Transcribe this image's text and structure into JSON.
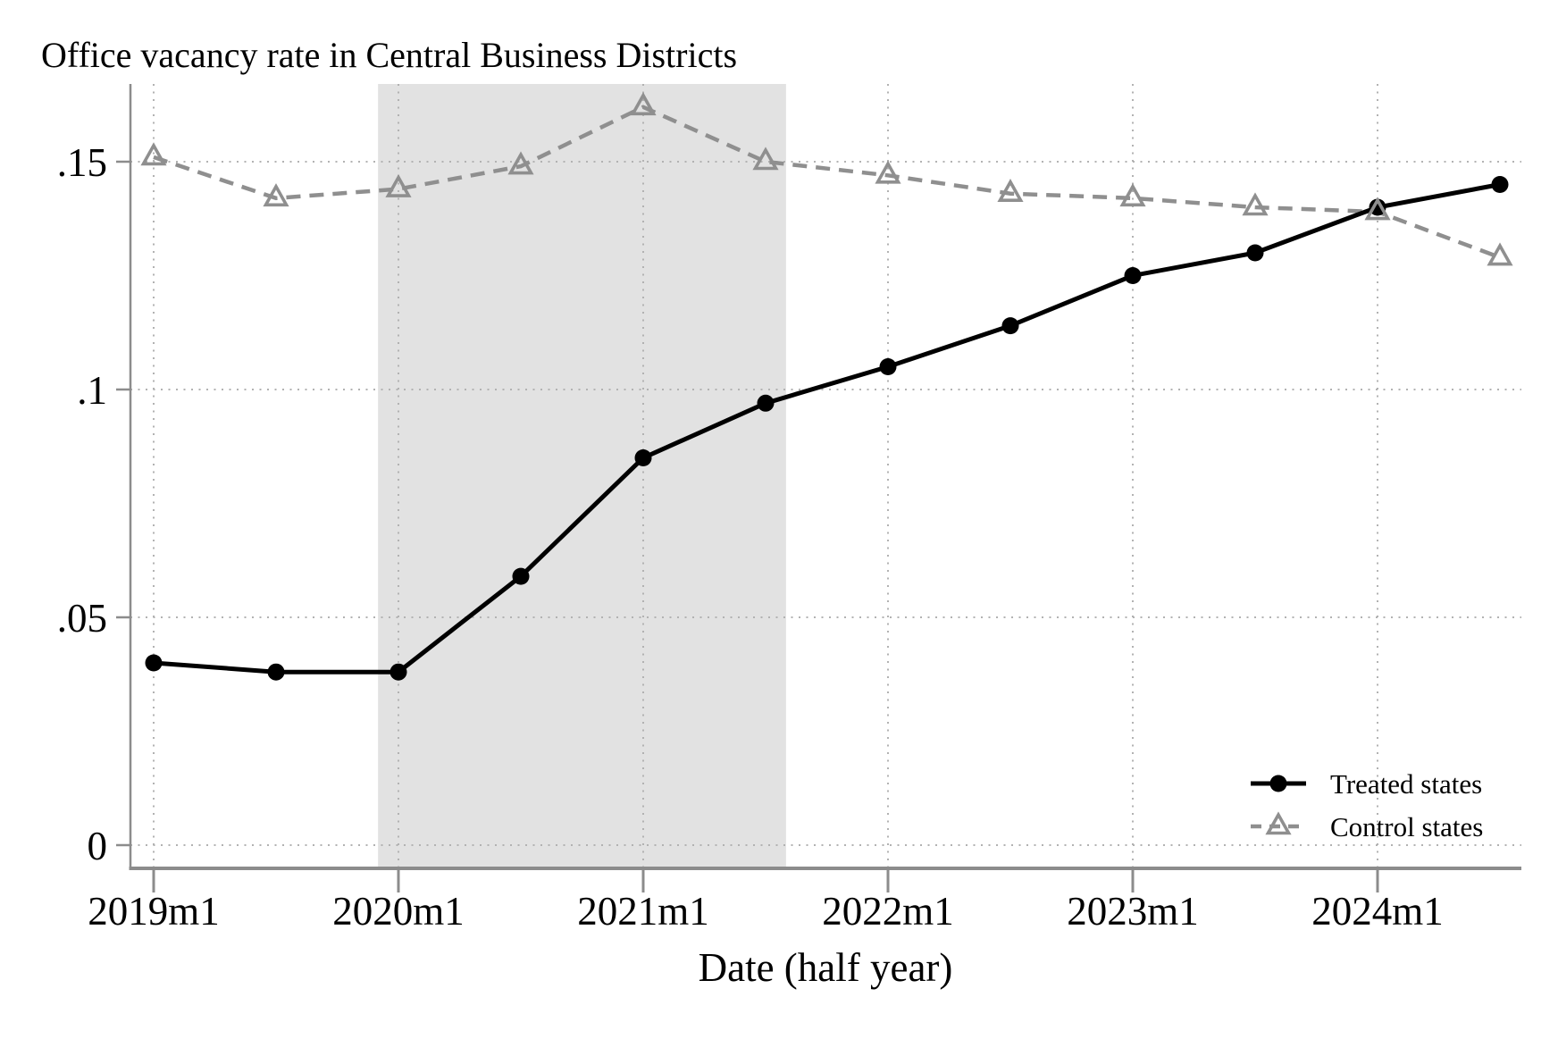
{
  "title": "Office vacancy rate in Central Business Districts",
  "chart_data": {
    "type": "line",
    "title": "Office vacancy rate in Central Business Districts",
    "xlabel": "Date (half year)",
    "ylabel": "",
    "x_categories": [
      "2019m1",
      "2019m7",
      "2020m1",
      "2020m7",
      "2021m1",
      "2021m7",
      "2022m1",
      "2022m7",
      "2023m1",
      "2023m7",
      "2024m1",
      "2024m7"
    ],
    "x_tick_labels": [
      "2019m1",
      "2020m1",
      "2021m1",
      "2022m1",
      "2023m1",
      "2024m1"
    ],
    "y_ticks": [
      {
        "value": 0,
        "label": "0"
      },
      {
        "value": 0.05,
        "label": ".05"
      },
      {
        "value": 0.1,
        "label": ".1"
      },
      {
        "value": 0.15,
        "label": ".15"
      }
    ],
    "ylim": [
      -0.0051,
      0.1671
    ],
    "grid": "dotted",
    "shaded_region": {
      "from": "2019m12",
      "to": "2021m8",
      "color": "#e2e2e2"
    },
    "series": [
      {
        "name": "Treated states",
        "color": "#000000",
        "line_style": "solid",
        "marker": "filled-circle",
        "values": [
          0.04,
          0.038,
          0.038,
          0.059,
          0.085,
          0.097,
          0.105,
          0.114,
          0.125,
          0.13,
          0.14,
          0.145
        ]
      },
      {
        "name": "Control states",
        "color": "#8f8f8f",
        "line_style": "dashed",
        "marker": "open-triangle",
        "values": [
          0.151,
          0.142,
          0.144,
          0.149,
          0.162,
          0.15,
          0.147,
          0.143,
          0.142,
          0.14,
          0.139,
          0.129
        ]
      }
    ],
    "legend": {
      "position": "bottom-right",
      "entries": [
        "Treated states",
        "Control states"
      ]
    }
  },
  "style": {
    "axis_color": "#8c8c8c",
    "grid_color": "#b2b2b2",
    "band_color": "#e2e2e2",
    "text_color": "#000000"
  }
}
